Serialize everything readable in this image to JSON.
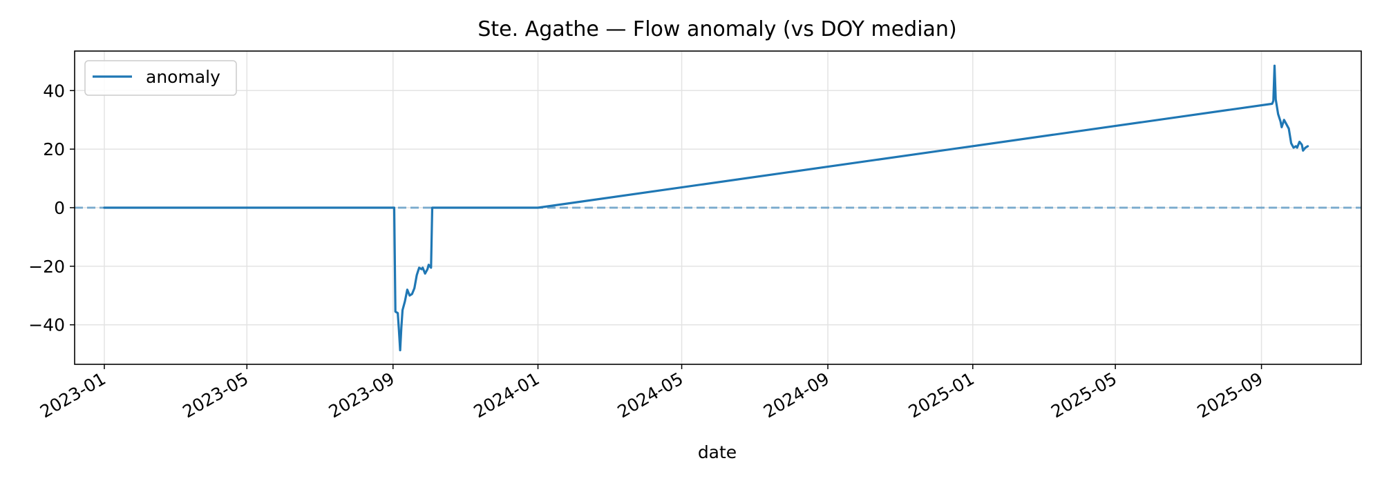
{
  "chart_data": {
    "type": "line",
    "title": "Ste. Agathe — Flow anomaly (vs DOY median)",
    "xlabel": "date",
    "ylabel": "",
    "x_range": [
      "2022-12-07",
      "2025-11-24"
    ],
    "ylim": [
      -53.5,
      53.5
    ],
    "x_ticks": [
      "2023-01",
      "2023-05",
      "2023-09",
      "2024-01",
      "2024-05",
      "2024-09",
      "2025-01",
      "2025-05",
      "2025-09"
    ],
    "y_ticks": [
      -40,
      -20,
      0,
      20,
      40
    ],
    "y_tick_labels": [
      "−40",
      "−20",
      "0",
      "20",
      "40"
    ],
    "grid": true,
    "legend_position": "upper-left",
    "reference_line": {
      "y": 0,
      "style": "dashed"
    },
    "colors": {
      "series": "#1f77b4",
      "grid": "#e3e3e3"
    },
    "series": [
      {
        "name": "anomaly",
        "points": [
          [
            "2023-01-01",
            0
          ],
          [
            "2023-09-02",
            0
          ],
          [
            "2023-09-03",
            -35.5
          ],
          [
            "2023-09-05",
            -36
          ],
          [
            "2023-09-06",
            -42
          ],
          [
            "2023-09-07",
            -48.7
          ],
          [
            "2023-09-08",
            -41
          ],
          [
            "2023-09-09",
            -35
          ],
          [
            "2023-09-11",
            -32
          ],
          [
            "2023-09-13",
            -28
          ],
          [
            "2023-09-15",
            -30
          ],
          [
            "2023-09-17",
            -29.5
          ],
          [
            "2023-09-19",
            -27.5
          ],
          [
            "2023-09-21",
            -23
          ],
          [
            "2023-09-23",
            -20.5
          ],
          [
            "2023-09-25",
            -21
          ],
          [
            "2023-09-26",
            -20.5
          ],
          [
            "2023-09-28",
            -22.5
          ],
          [
            "2023-09-30",
            -21
          ],
          [
            "2023-10-01",
            -19.5
          ],
          [
            "2023-10-03",
            -20.5
          ],
          [
            "2023-10-04",
            0
          ],
          [
            "2024-01-01",
            0
          ],
          [
            "2025-09-10",
            35.5
          ],
          [
            "2025-09-11",
            36.5
          ],
          [
            "2025-09-12",
            48.5
          ],
          [
            "2025-09-13",
            37
          ],
          [
            "2025-09-15",
            32
          ],
          [
            "2025-09-17",
            29.5
          ],
          [
            "2025-09-18",
            27.5
          ],
          [
            "2025-09-20",
            30
          ],
          [
            "2025-09-22",
            28.5
          ],
          [
            "2025-09-24",
            27
          ],
          [
            "2025-09-26",
            22
          ],
          [
            "2025-09-28",
            20.5
          ],
          [
            "2025-09-30",
            21
          ],
          [
            "2025-10-01",
            20.5
          ],
          [
            "2025-10-03",
            22.5
          ],
          [
            "2025-10-04",
            22
          ],
          [
            "2025-10-05",
            21.5
          ],
          [
            "2025-10-06",
            19.5
          ],
          [
            "2025-10-08",
            20.5
          ],
          [
            "2025-10-10",
            21
          ]
        ]
      }
    ]
  }
}
